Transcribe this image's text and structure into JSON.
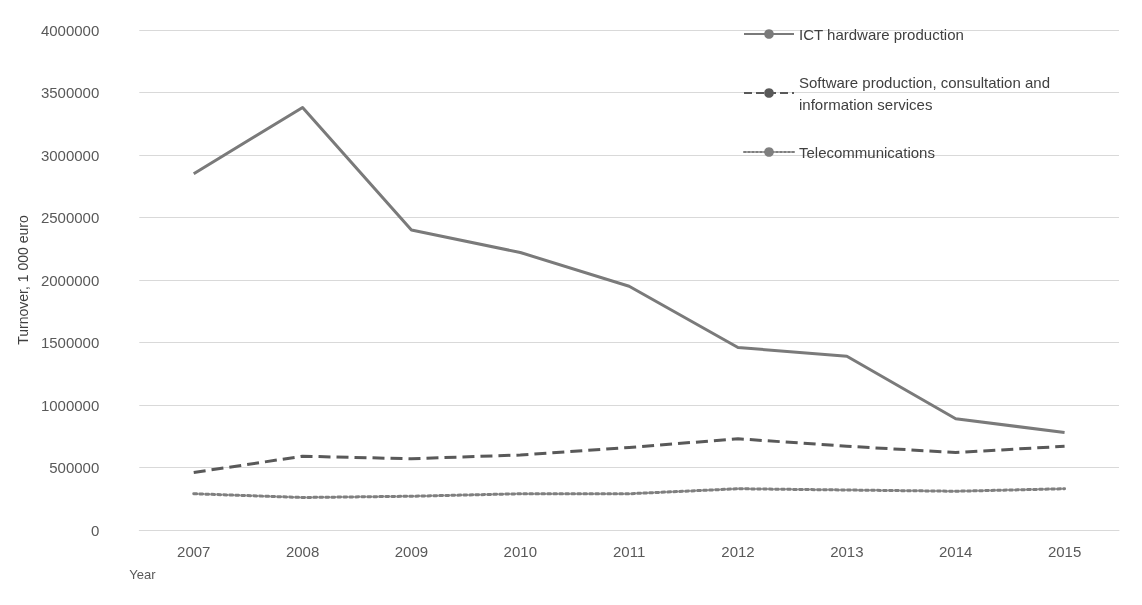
{
  "chart_data": {
    "type": "line",
    "xlabel": "Year",
    "ylabel": "Turnover, 1 000 euro",
    "categories": [
      "2007",
      "2008",
      "2009",
      "2010",
      "2011",
      "2012",
      "2013",
      "2014",
      "2015"
    ],
    "series": [
      {
        "name": "ICT hardware production",
        "color": "#7a7a7a",
        "line_style": "solid",
        "values": [
          2850000,
          3380000,
          2400000,
          2220000,
          1950000,
          1460000,
          1390000,
          890000,
          780000
        ]
      },
      {
        "name": "Software production, consultation and information services",
        "color": "#595959",
        "line_style": "dashed",
        "values": [
          460000,
          590000,
          570000,
          600000,
          660000,
          730000,
          670000,
          620000,
          670000
        ]
      },
      {
        "name": "Telecommunications",
        "color": "#7f7f7f",
        "line_style": "dotted",
        "values": [
          290000,
          260000,
          270000,
          290000,
          290000,
          330000,
          320000,
          310000,
          330000
        ]
      }
    ],
    "ylim": [
      0,
      4000000
    ],
    "yticks": [
      0,
      500000,
      1000000,
      1500000,
      2000000,
      2500000,
      3000000,
      3500000,
      4000000
    ],
    "grid": "y",
    "legend": "top right",
    "marker": "none"
  }
}
